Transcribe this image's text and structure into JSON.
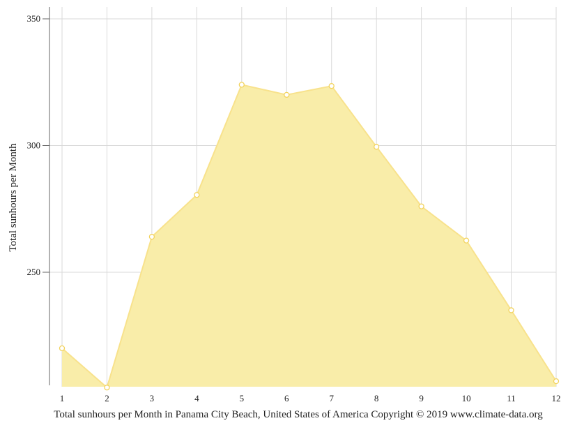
{
  "chart_data": {
    "type": "area",
    "title": "",
    "caption": "Total sunhours per Month in Panama City Beach, United States of America Copyright © 2019 www.climate-data.org",
    "xlabel": "",
    "ylabel": "Total sunhours per Month",
    "x": [
      1,
      2,
      3,
      4,
      5,
      6,
      7,
      8,
      9,
      10,
      11,
      12
    ],
    "x_tick_labels": [
      "1",
      "2",
      "3",
      "4",
      "5",
      "6",
      "7",
      "8",
      "9",
      "10",
      "11",
      "12"
    ],
    "series": [
      {
        "values": [
          220,
          204.5,
          264,
          280.5,
          324,
          320,
          323.5,
          299.5,
          276,
          262.5,
          235,
          207
        ]
      }
    ],
    "ylim": [
      204.5,
      355
    ],
    "y_ticks": [
      250,
      300,
      350
    ],
    "y_tick_labels": [
      "250",
      "300",
      "350"
    ],
    "grid": true,
    "legend": "none",
    "colors": {
      "fill": "#f9eda9",
      "line": "#f8e28c",
      "marker_fill": "#ffffff",
      "marker_stroke": "#f2d35e",
      "grid": "#d9d9d9",
      "axis": "#666666"
    }
  }
}
